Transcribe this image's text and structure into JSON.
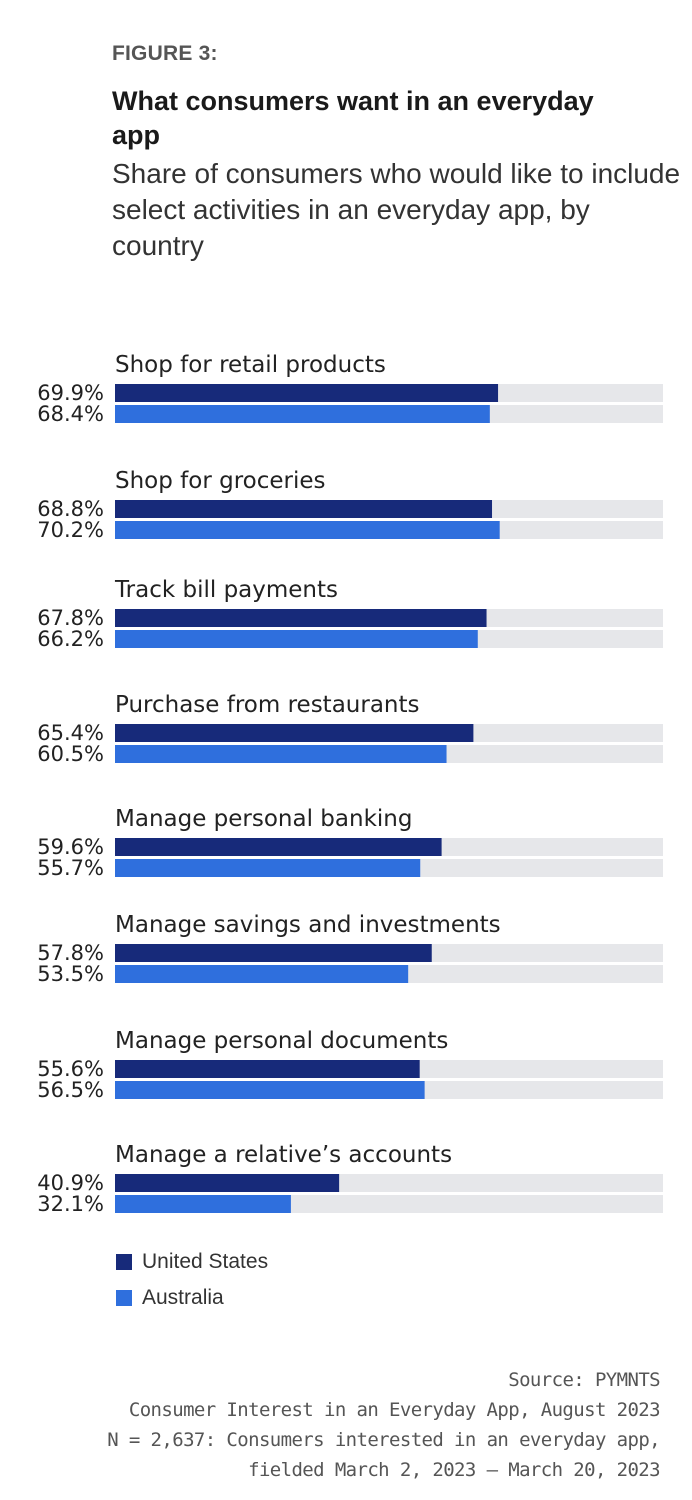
{
  "header": {
    "figure_label": "FIGURE 3:",
    "title": "What consumers want in an everyday app",
    "subtitle": "Share of consumers who would like to include select activities in an everyday app, by country"
  },
  "chart_data": {
    "type": "bar",
    "orientation": "horizontal",
    "title": "What consumers want in an everyday app",
    "subtitle": "Share of consumers who would like to include select activities in an everyday app, by country",
    "categories": [
      "Shop for retail products",
      "Shop for groceries",
      "Track bill payments",
      "Purchase from restaurants",
      "Manage personal banking",
      "Manage savings and investments",
      "Manage personal documents",
      "Manage a relative’s accounts"
    ],
    "series": [
      {
        "name": "United States",
        "color": "#172a7a",
        "values": [
          69.9,
          68.8,
          67.8,
          65.4,
          59.6,
          57.8,
          55.6,
          40.9
        ],
        "labels": [
          "69.9%",
          "68.8%",
          "67.8%",
          "65.4%",
          "59.6%",
          "57.8%",
          "55.6%",
          "40.9%"
        ]
      },
      {
        "name": "Australia",
        "color": "#2f6fdd",
        "values": [
          68.4,
          70.2,
          66.2,
          60.5,
          55.7,
          53.5,
          56.5,
          32.1
        ],
        "labels": [
          "68.4%",
          "70.2%",
          "66.2%",
          "60.5%",
          "55.7%",
          "53.5%",
          "56.5%",
          "32.1%"
        ]
      }
    ],
    "xlim": [
      0,
      100
    ],
    "track_color": "#e6e7ea",
    "legend_position": "bottom-left",
    "grid": false
  },
  "legend": [
    {
      "label": "United States",
      "color": "#172a7a"
    },
    {
      "label": "Australia",
      "color": "#2f6fdd"
    }
  ],
  "source": {
    "line1": "Source: PYMNTS",
    "line2": "Consumer Interest in an Everyday App, August 2023",
    "line3": "N = 2,637: Consumers interested in an everyday app,",
    "line4": "fielded March 2, 2023 – March 20, 2023"
  }
}
